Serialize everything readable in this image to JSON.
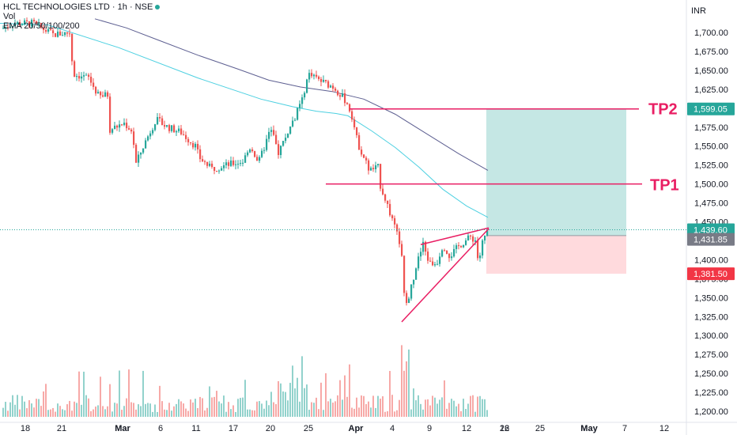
{
  "header": {
    "symbol_line": "HCL TECHNOLOGIES LTD · 1h · NSE",
    "vol_label": "Vol",
    "ema_label": "EMA 20/50/100/200"
  },
  "currency": "INR",
  "colors": {
    "up": "#26a69a",
    "down": "#ef5350",
    "target_zone": "#b2dfdb",
    "stop_zone": "#ffcdd2",
    "tp_line": "#e91e63",
    "ema_fast": "#4dd0e1",
    "ema_slow": "#5d5f91",
    "price_tag": "#26a69a",
    "entry_tag": "#787b86",
    "stop_tag": "#f23645"
  },
  "chart_data": {
    "type": "candlestick",
    "y_axis": {
      "ticks": [
        "1,700.00",
        "1,675.00",
        "1,650.00",
        "1,625.00",
        "1,600.00",
        "1,575.00",
        "1,550.00",
        "1,525.00",
        "1,500.00",
        "1,475.00",
        "1,450.00",
        "1,425.00",
        "1,400.00",
        "1,375.00",
        "1,350.00",
        "1,325.00",
        "1,300.00",
        "1,275.00",
        "1,250.00",
        "1,225.00",
        "1,200.00"
      ],
      "range": [
        1195,
        1722
      ]
    },
    "x_axis": {
      "ticks": [
        "18",
        "21",
        "Mar",
        "6",
        "11",
        "17",
        "20",
        "25",
        "Apr",
        "4",
        "9",
        "12",
        "16",
        "22",
        "25",
        "May",
        "7",
        "12"
      ]
    },
    "price_labels": {
      "tp2": "1,599.05",
      "current": "1,439.60",
      "entry": "1,431.85",
      "stop": "1,381.50"
    },
    "levels": {
      "tp2": 1599.05,
      "tp1": 1500.0,
      "current": 1439.6,
      "entry": 1431.85,
      "stop": 1381.5
    },
    "annotations": {
      "tp2": "TP2",
      "tp1": "TP1"
    },
    "anchors": [
      [
        5,
        1705
      ],
      [
        20,
        1712
      ],
      [
        45,
        1712
      ],
      [
        70,
        1697
      ],
      [
        92,
        1700
      ],
      [
        95,
        1645
      ],
      [
        115,
        1640
      ],
      [
        128,
        1615
      ],
      [
        140,
        1618
      ],
      [
        142,
        1572
      ],
      [
        160,
        1580
      ],
      [
        170,
        1570
      ],
      [
        175,
        1527
      ],
      [
        185,
        1552
      ],
      [
        200,
        1585
      ],
      [
        215,
        1575
      ],
      [
        232,
        1568
      ],
      [
        250,
        1550
      ],
      [
        255,
        1535
      ],
      [
        270,
        1520
      ],
      [
        290,
        1525
      ],
      [
        310,
        1530
      ],
      [
        320,
        1550
      ],
      [
        330,
        1528
      ],
      [
        345,
        1572
      ],
      [
        355,
        1542
      ],
      [
        370,
        1575
      ],
      [
        385,
        1610
      ],
      [
        392,
        1645
      ],
      [
        410,
        1635
      ],
      [
        425,
        1628
      ],
      [
        440,
        1610
      ],
      [
        448,
        1590
      ],
      [
        455,
        1555
      ],
      [
        470,
        1518
      ],
      [
        482,
        1522
      ],
      [
        484,
        1498
      ],
      [
        492,
        1475
      ],
      [
        500,
        1448
      ],
      [
        510,
        1418
      ],
      [
        515,
        1335
      ],
      [
        522,
        1360
      ],
      [
        530,
        1395
      ],
      [
        538,
        1420
      ],
      [
        546,
        1395
      ],
      [
        555,
        1395
      ],
      [
        563,
        1420
      ],
      [
        572,
        1405
      ],
      [
        585,
        1420
      ],
      [
        598,
        1430
      ],
      [
        605,
        1425
      ],
      [
        608,
        1392
      ],
      [
        612,
        1420
      ],
      [
        620,
        1439.6
      ]
    ],
    "ema_fast": [
      [
        0,
        1712
      ],
      [
        60,
        1710
      ],
      [
        150,
        1680
      ],
      [
        250,
        1640
      ],
      [
        330,
        1612
      ],
      [
        370,
        1602
      ],
      [
        400,
        1596
      ],
      [
        425,
        1593
      ],
      [
        440,
        1590
      ],
      [
        470,
        1570
      ],
      [
        500,
        1548
      ],
      [
        530,
        1522
      ],
      [
        560,
        1493
      ],
      [
        590,
        1471
      ],
      [
        617,
        1456
      ]
    ],
    "ema_slow": [
      [
        120,
        1718
      ],
      [
        160,
        1706
      ],
      [
        200,
        1690
      ],
      [
        250,
        1670
      ],
      [
        300,
        1652
      ],
      [
        340,
        1637
      ],
      [
        380,
        1628
      ],
      [
        420,
        1622
      ],
      [
        460,
        1612
      ],
      [
        500,
        1592
      ],
      [
        540,
        1566
      ],
      [
        580,
        1540
      ],
      [
        617,
        1518
      ]
    ],
    "volume_base_y": 527,
    "volume_max_height": 118
  }
}
